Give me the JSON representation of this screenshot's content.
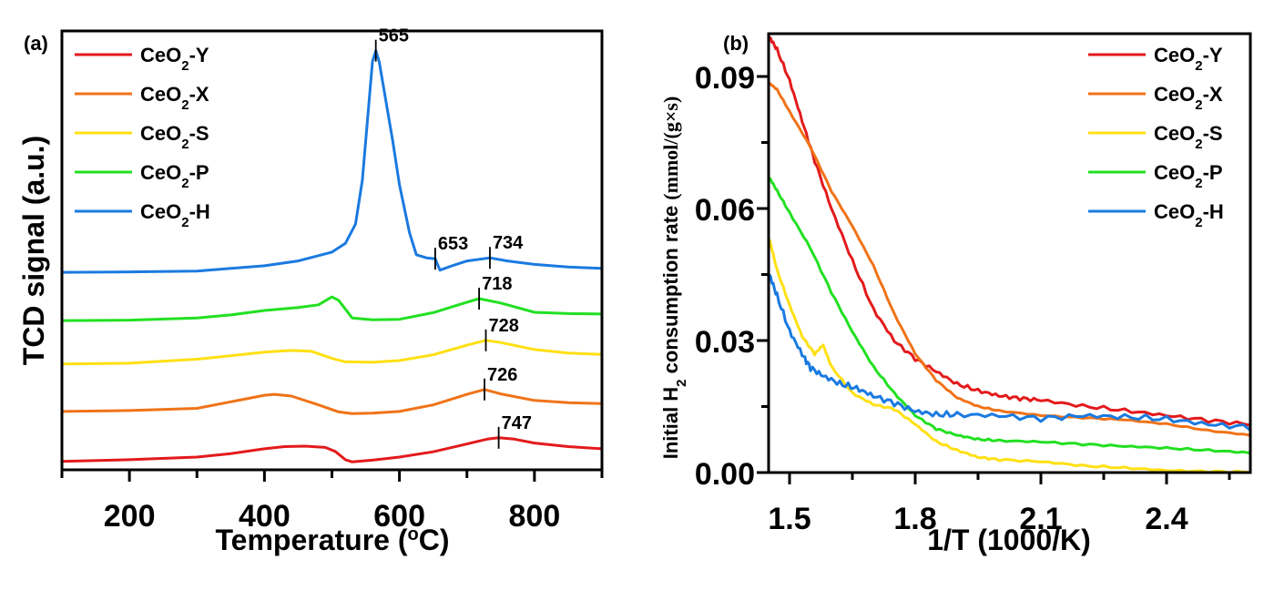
{
  "chart_data": [
    {
      "panel": "(a)",
      "type": "line",
      "title": "",
      "xlabel": "Temperature (°C)",
      "xlabel_main": "Temperature (",
      "xlabel_sup": "o",
      "xlabel_end": "C)",
      "ylabel": "TCD signal (a.u.)",
      "xlim": [
        100,
        900
      ],
      "ylim": [
        0,
        100
      ],
      "xticks": [
        200,
        400,
        600,
        800
      ],
      "xminor": [
        100,
        300,
        500,
        700,
        900
      ],
      "yticks_visible": false,
      "grid": false,
      "legend_position": "top-left",
      "series": [
        {
          "name": "CeO2-Y",
          "label_main": "CeO",
          "label_sub": "2",
          "label_end": "-Y",
          "color": "#e31a1c",
          "x": [
            100,
            200,
            300,
            350,
            400,
            430,
            460,
            490,
            505,
            520,
            530,
            560,
            600,
            650,
            700,
            730,
            747,
            770,
            800,
            850,
            900
          ],
          "y": [
            1.9,
            2.3,
            2.9,
            3.7,
            4.8,
            5.3,
            5.4,
            5.1,
            4.2,
            2.3,
            1.8,
            2.2,
            2.9,
            4.1,
            5.9,
            7.0,
            7.3,
            7.0,
            6.1,
            5.3,
            4.8
          ]
        },
        {
          "name": "CeO2-X",
          "label_main": "CeO",
          "label_sub": "2",
          "label_end": "-X",
          "color": "#f07318",
          "x": [
            100,
            200,
            300,
            350,
            400,
            415,
            440,
            480,
            510,
            530,
            560,
            600,
            650,
            700,
            726,
            750,
            800,
            850,
            900
          ],
          "y": [
            13.3,
            13.5,
            14.0,
            15.5,
            17.0,
            17.2,
            16.8,
            14.8,
            13.2,
            12.8,
            12.9,
            13.3,
            14.8,
            17.2,
            18.3,
            17.3,
            15.8,
            15.3,
            15.1
          ]
        },
        {
          "name": "CeO2-S",
          "label_main": "CeO",
          "label_sub": "2",
          "label_end": "-S",
          "color": "#ffe014",
          "x": [
            100,
            200,
            300,
            350,
            400,
            440,
            470,
            500,
            520,
            560,
            600,
            650,
            700,
            728,
            750,
            800,
            850,
            900
          ],
          "y": [
            24.1,
            24.3,
            25.2,
            26.0,
            26.8,
            27.2,
            27.0,
            25.4,
            24.6,
            24.5,
            24.9,
            26.2,
            28.4,
            29.5,
            29.0,
            27.4,
            26.6,
            26.3
          ]
        },
        {
          "name": "CeO2-P",
          "label_main": "CeO",
          "label_sub": "2",
          "label_end": "-P",
          "color": "#22e022",
          "x": [
            100,
            200,
            300,
            350,
            400,
            450,
            480,
            500,
            510,
            530,
            560,
            600,
            650,
            700,
            718,
            750,
            800,
            850,
            900
          ],
          "y": [
            34.0,
            34.1,
            34.6,
            35.3,
            36.3,
            37.0,
            37.6,
            39.4,
            38.6,
            34.6,
            34.2,
            34.3,
            35.8,
            38.2,
            39.0,
            38.0,
            35.9,
            35.6,
            35.5
          ]
        },
        {
          "name": "CeO2-H",
          "label_main": "CeO",
          "label_sub": "2",
          "label_end": "-H",
          "color": "#1a7ae0",
          "x": [
            100,
            200,
            300,
            400,
            450,
            500,
            520,
            535,
            545,
            555,
            560,
            565,
            570,
            580,
            590,
            600,
            615,
            625,
            640,
            653,
            660,
            680,
            700,
            734,
            760,
            800,
            850,
            900
          ],
          "y": [
            45.0,
            45.1,
            45.3,
            46.5,
            47.6,
            49.6,
            51.6,
            56.0,
            66.0,
            84.0,
            93.0,
            95.5,
            93.0,
            84.0,
            75.0,
            65.0,
            54.0,
            49.0,
            48.3,
            48.1,
            45.5,
            46.6,
            47.6,
            48.3,
            47.6,
            46.8,
            46.2,
            45.9
          ]
        }
      ],
      "annotations": [
        {
          "text": "565",
          "x": 565,
          "series": "CeO2-H"
        },
        {
          "text": "653",
          "x": 653,
          "series": "CeO2-H"
        },
        {
          "text": "734",
          "x": 734,
          "series": "CeO2-H"
        },
        {
          "text": "718",
          "x": 718,
          "series": "CeO2-P"
        },
        {
          "text": "728",
          "x": 728,
          "series": "CeO2-S"
        },
        {
          "text": "726",
          "x": 726,
          "series": "CeO2-X"
        },
        {
          "text": "747",
          "x": 747,
          "series": "CeO2-Y"
        }
      ]
    },
    {
      "panel": "(b)",
      "type": "line",
      "title": "",
      "xlabel": "1/T (1000/K)",
      "ylabel": "Initial H2 consumption rate (mmol/(g×s))",
      "ylabel_a": "Initial H",
      "ylabel_sub": "2",
      "ylabel_b": " consumption rate ",
      "ylabel_c": "(mmol/(g×s)",
      "xlim": [
        1.45,
        2.65
      ],
      "ylim": [
        0,
        0.1
      ],
      "xticks": [
        1.5,
        1.8,
        2.1,
        2.4
      ],
      "xtick_labels": [
        "1.5",
        "1.8",
        "2.1",
        "2.4"
      ],
      "xminor": [
        1.65,
        1.95,
        2.25,
        2.55
      ],
      "yticks": [
        0.0,
        0.03,
        0.06,
        0.09
      ],
      "ytick_labels": [
        "0.00",
        "0.03",
        "0.06",
        "0.09"
      ],
      "yminor": [
        0.015,
        0.045,
        0.075
      ],
      "grid": false,
      "legend_position": "top-right",
      "series": [
        {
          "name": "CeO2-Y",
          "label_main": "CeO",
          "label_sub": "2",
          "label_end": "-Y",
          "color": "#e31a1c",
          "x": [
            1.452,
            1.47,
            1.5,
            1.53,
            1.56,
            1.6,
            1.65,
            1.7,
            1.75,
            1.8,
            1.85,
            1.9,
            1.95,
            2.0,
            2.05,
            2.1,
            2.2,
            2.3,
            2.4,
            2.5,
            2.6,
            2.65
          ],
          "y": [
            0.099,
            0.096,
            0.089,
            0.08,
            0.071,
            0.06,
            0.048,
            0.037,
            0.03,
            0.026,
            0.023,
            0.02,
            0.0185,
            0.0175,
            0.017,
            0.0165,
            0.015,
            0.014,
            0.013,
            0.012,
            0.011,
            0.009
          ]
        },
        {
          "name": "CeO2-X",
          "label_main": "CeO",
          "label_sub": "2",
          "label_end": "-X",
          "color": "#f07318",
          "x": [
            1.452,
            1.47,
            1.5,
            1.55,
            1.6,
            1.65,
            1.7,
            1.75,
            1.8,
            1.85,
            1.9,
            1.95,
            2.0,
            2.1,
            2.2,
            2.3,
            2.4,
            2.5,
            2.6,
            2.65
          ],
          "y": [
            0.0885,
            0.087,
            0.082,
            0.074,
            0.064,
            0.056,
            0.047,
            0.036,
            0.027,
            0.021,
            0.017,
            0.015,
            0.014,
            0.013,
            0.0125,
            0.012,
            0.011,
            0.0095,
            0.0085,
            0.008
          ]
        },
        {
          "name": "CeO2-S",
          "label_main": "CeO",
          "label_sub": "2",
          "label_end": "-S",
          "color": "#ffe014",
          "x": [
            1.452,
            1.47,
            1.5,
            1.53,
            1.56,
            1.58,
            1.6,
            1.65,
            1.7,
            1.75,
            1.8,
            1.85,
            1.9,
            1.95,
            2.0,
            2.1,
            2.2,
            2.3,
            2.4,
            2.5,
            2.6,
            2.65
          ],
          "y": [
            0.053,
            0.046,
            0.038,
            0.031,
            0.027,
            0.029,
            0.024,
            0.018,
            0.0155,
            0.0145,
            0.011,
            0.007,
            0.005,
            0.0035,
            0.003,
            0.0025,
            0.0015,
            0.001,
            0.0005,
            0.0003,
            0.0002,
            0.0001
          ]
        },
        {
          "name": "CeO2-P",
          "label_main": "CeO",
          "label_sub": "2",
          "label_end": "-P",
          "color": "#22e022",
          "x": [
            1.452,
            1.47,
            1.5,
            1.55,
            1.6,
            1.65,
            1.7,
            1.75,
            1.8,
            1.85,
            1.9,
            1.95,
            2.0,
            2.1,
            2.2,
            2.3,
            2.4,
            2.5,
            2.6,
            2.65
          ],
          "y": [
            0.067,
            0.064,
            0.059,
            0.051,
            0.041,
            0.032,
            0.024,
            0.018,
            0.013,
            0.01,
            0.0085,
            0.0075,
            0.0072,
            0.007,
            0.0065,
            0.006,
            0.0055,
            0.005,
            0.0045,
            0.004
          ]
        },
        {
          "name": "CeO2-H",
          "label_main": "CeO",
          "label_sub": "2",
          "label_end": "-H",
          "color": "#1a7ae0",
          "x": [
            1.452,
            1.47,
            1.5,
            1.53,
            1.55,
            1.58,
            1.62,
            1.66,
            1.7,
            1.75,
            1.8,
            1.85,
            1.9,
            2.0,
            2.1,
            2.2,
            2.3,
            2.4,
            2.5,
            2.6,
            2.65
          ],
          "y": [
            0.045,
            0.04,
            0.032,
            0.027,
            0.024,
            0.022,
            0.02,
            0.019,
            0.0175,
            0.016,
            0.014,
            0.013,
            0.013,
            0.013,
            0.0125,
            0.013,
            0.0125,
            0.012,
            0.011,
            0.0105,
            0.009
          ]
        }
      ]
    }
  ],
  "panel_labels": [
    "(a)",
    "(b)"
  ]
}
